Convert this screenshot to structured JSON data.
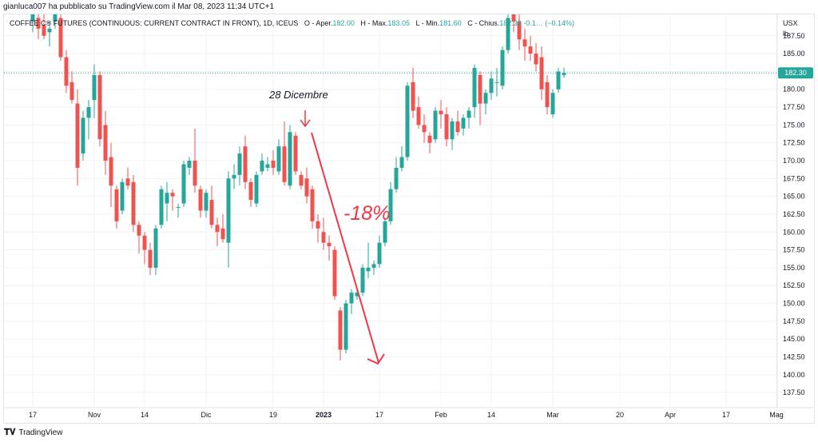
{
  "publisher_line": "gianluca007 ha pubblicato su TradingView.com il Mar 08, 2023 11:34 UTC+1",
  "legend": {
    "symbol": "COFFEE C® FUTURES (CONTINUOUS: CURRENT CONTRACT IN FRONT), 1D, ICEUS",
    "open_label": "O - Aper.",
    "open_value": "182.00",
    "high_label": "H - Max.",
    "high_value": "183.05",
    "low_label": "L - Min.",
    "low_value": "181.60",
    "close_label": "C - Chius.",
    "close_value": "182.30",
    "change_value": "-0.1…",
    "change_pct": "(−0.14%)"
  },
  "currency_label": "USX",
  "unit_label": "lb",
  "last_price_label": "182.30",
  "annotations": {
    "date_label": "28 Dicembre",
    "pct_label": "-18%"
  },
  "footer_brand": "TradingView",
  "colors": {
    "up": "#26a69a",
    "down": "#ef5350",
    "grid": "#f0f3fa",
    "annotation": "#f23645",
    "price_tag_bg": "#26a69a"
  },
  "chart_data": {
    "type": "candlestick",
    "ylim": [
      135.5,
      190.5
    ],
    "y_ticks": [
      137.5,
      140.0,
      142.5,
      145.0,
      147.5,
      150.0,
      152.5,
      155.0,
      157.5,
      160.0,
      162.5,
      165.0,
      167.5,
      170.0,
      172.5,
      175.0,
      177.5,
      180.0,
      182.5,
      185.0,
      187.5
    ],
    "y_tick_labels": [
      "137.50",
      "140.00",
      "142.50",
      "145.00",
      "147.50",
      "150.00",
      "152.50",
      "155.00",
      "157.50",
      "160.00",
      "162.50",
      "165.00",
      "167.50",
      "170.00",
      "172.50",
      "175.00",
      "177.50",
      "180.00",
      "182.50",
      "185.00",
      "187.50"
    ],
    "x_ticks": [
      {
        "label": "17",
        "bar": 0
      },
      {
        "label": "Nov",
        "bar": 11
      },
      {
        "label": "14",
        "bar": 20
      },
      {
        "label": "Dic",
        "bar": 31
      },
      {
        "label": "19",
        "bar": 43
      },
      {
        "label": "2023",
        "bar": 52,
        "bold": true
      },
      {
        "label": "17",
        "bar": 62
      },
      {
        "label": "Feb",
        "bar": 73
      },
      {
        "label": "14",
        "bar": 82
      },
      {
        "label": "Mar",
        "bar": 93
      },
      {
        "label": "20",
        "bar": 105
      },
      {
        "label": "Apr",
        "bar": 114
      },
      {
        "label": "17",
        "bar": 124
      },
      {
        "label": "Mag",
        "bar": 133
      }
    ],
    "last_price": 182.3,
    "candles": [
      [
        189.5,
        191.0,
        188.0,
        190.5
      ],
      [
        190.0,
        191.5,
        187.0,
        188.5
      ],
      [
        189.0,
        190.5,
        187.0,
        187.5
      ],
      [
        188.0,
        189.5,
        186.0,
        188.5
      ],
      [
        189.5,
        191.5,
        188.5,
        190.5
      ],
      [
        190.0,
        190.5,
        184.0,
        184.5
      ],
      [
        184.5,
        185.5,
        179.5,
        180.5
      ],
      [
        181.0,
        182.5,
        178.0,
        178.5
      ],
      [
        178.0,
        180.0,
        166.5,
        169.0
      ],
      [
        171.0,
        177.0,
        170.0,
        176.0
      ],
      [
        176.0,
        178.5,
        173.0,
        177.5
      ],
      [
        178.5,
        183.5,
        176.0,
        182.0
      ],
      [
        182.0,
        182.5,
        172.0,
        173.0
      ],
      [
        175.0,
        177.0,
        168.0,
        170.0
      ],
      [
        170.5,
        172.5,
        163.5,
        166.5
      ],
      [
        166.0,
        166.5,
        160.5,
        161.5
      ],
      [
        163.0,
        167.5,
        162.5,
        167.0
      ],
      [
        167.5,
        169.0,
        166.0,
        166.5
      ],
      [
        167.0,
        168.0,
        160.0,
        161.0
      ],
      [
        161.0,
        161.5,
        157.0,
        159.5
      ],
      [
        159.5,
        160.0,
        155.5,
        157.5
      ],
      [
        157.5,
        158.5,
        154.0,
        155.0
      ],
      [
        155.0,
        161.0,
        154.0,
        160.5
      ],
      [
        161.0,
        166.5,
        160.5,
        166.0
      ],
      [
        164.0,
        167.0,
        161.5,
        165.5
      ],
      [
        165.5,
        166.0,
        163.0,
        165.0
      ],
      [
        163.5,
        164.0,
        162.0,
        163.5
      ],
      [
        164.0,
        170.0,
        163.5,
        169.5
      ],
      [
        169.0,
        170.5,
        168.0,
        170.0
      ],
      [
        170.0,
        174.5,
        165.5,
        166.5
      ],
      [
        166.0,
        166.5,
        162.0,
        163.0
      ],
      [
        163.0,
        166.0,
        162.0,
        165.5
      ],
      [
        164.5,
        166.5,
        160.5,
        161.0
      ],
      [
        161.0,
        162.0,
        158.0,
        160.0
      ],
      [
        160.5,
        162.5,
        158.5,
        159.0
      ],
      [
        158.5,
        168.5,
        155.0,
        167.5
      ],
      [
        167.5,
        169.5,
        166.0,
        168.0
      ],
      [
        168.0,
        172.0,
        166.5,
        171.0
      ],
      [
        172.0,
        173.5,
        166.0,
        167.0
      ],
      [
        167.0,
        167.5,
        163.5,
        164.5
      ],
      [
        164.0,
        168.5,
        163.5,
        168.0
      ],
      [
        168.5,
        171.0,
        168.0,
        170.0
      ],
      [
        169.0,
        170.5,
        168.5,
        169.5
      ],
      [
        170.0,
        171.5,
        168.0,
        169.0
      ],
      [
        168.5,
        173.0,
        168.0,
        172.0
      ],
      [
        172.0,
        175.5,
        166.5,
        167.0
      ],
      [
        166.5,
        175.0,
        166.0,
        174.0
      ],
      [
        173.5,
        174.0,
        168.0,
        168.5
      ],
      [
        168.0,
        168.5,
        166.0,
        166.5
      ],
      [
        167.5,
        169.0,
        164.0,
        165.0
      ],
      [
        166.0,
        166.5,
        160.5,
        161.5
      ],
      [
        161.5,
        162.5,
        158.5,
        160.5
      ],
      [
        160.0,
        162.0,
        157.5,
        158.5
      ],
      [
        158.5,
        159.5,
        156.0,
        158.0
      ],
      [
        157.5,
        158.0,
        150.5,
        151.0
      ],
      [
        149.0,
        149.5,
        142.0,
        143.5
      ],
      [
        143.5,
        150.5,
        143.0,
        150.0
      ],
      [
        150.0,
        152.0,
        148.5,
        151.5
      ],
      [
        151.0,
        152.0,
        150.5,
        151.5
      ],
      [
        151.5,
        155.5,
        151.0,
        155.0
      ],
      [
        154.5,
        158.5,
        153.5,
        155.0
      ],
      [
        155.0,
        156.0,
        154.0,
        155.5
      ],
      [
        155.5,
        159.5,
        155.0,
        158.5
      ],
      [
        158.5,
        162.0,
        158.0,
        161.5
      ],
      [
        161.5,
        167.0,
        161.0,
        166.0
      ],
      [
        166.0,
        170.5,
        165.5,
        169.0
      ],
      [
        169.0,
        172.0,
        168.5,
        170.5
      ],
      [
        170.5,
        181.0,
        170.0,
        180.5
      ],
      [
        181.0,
        183.0,
        176.0,
        177.0
      ],
      [
        177.5,
        179.0,
        174.5,
        175.0
      ],
      [
        175.0,
        176.5,
        172.5,
        174.0
      ],
      [
        173.5,
        174.0,
        171.0,
        172.5
      ],
      [
        173.0,
        177.5,
        172.5,
        177.0
      ],
      [
        177.0,
        178.5,
        174.5,
        176.5
      ],
      [
        176.5,
        177.5,
        172.0,
        173.0
      ],
      [
        173.0,
        176.0,
        171.5,
        175.5
      ],
      [
        175.5,
        177.0,
        173.5,
        174.0
      ],
      [
        174.5,
        176.5,
        173.5,
        176.0
      ],
      [
        176.0,
        177.5,
        174.5,
        177.0
      ],
      [
        177.5,
        183.5,
        176.0,
        183.0
      ],
      [
        182.0,
        182.5,
        175.0,
        178.0
      ],
      [
        178.0,
        180.0,
        176.5,
        179.5
      ],
      [
        179.5,
        182.5,
        178.5,
        181.5
      ],
      [
        181.0,
        183.0,
        179.0,
        181.0
      ],
      [
        180.5,
        186.0,
        180.0,
        185.5
      ],
      [
        185.5,
        190.5,
        185.0,
        190.0
      ],
      [
        190.5,
        191.5,
        188.0,
        189.5
      ],
      [
        189.5,
        190.5,
        185.5,
        187.0
      ],
      [
        187.0,
        188.5,
        184.0,
        186.0
      ],
      [
        186.0,
        187.5,
        184.0,
        185.0
      ],
      [
        185.0,
        186.5,
        182.5,
        183.5
      ],
      [
        184.5,
        186.0,
        178.5,
        180.0
      ],
      [
        181.0,
        182.0,
        176.5,
        177.5
      ],
      [
        176.5,
        180.0,
        176.0,
        179.5
      ],
      [
        180.0,
        183.0,
        179.5,
        182.5
      ],
      [
        182.0,
        183.05,
        181.6,
        182.3
      ]
    ]
  }
}
